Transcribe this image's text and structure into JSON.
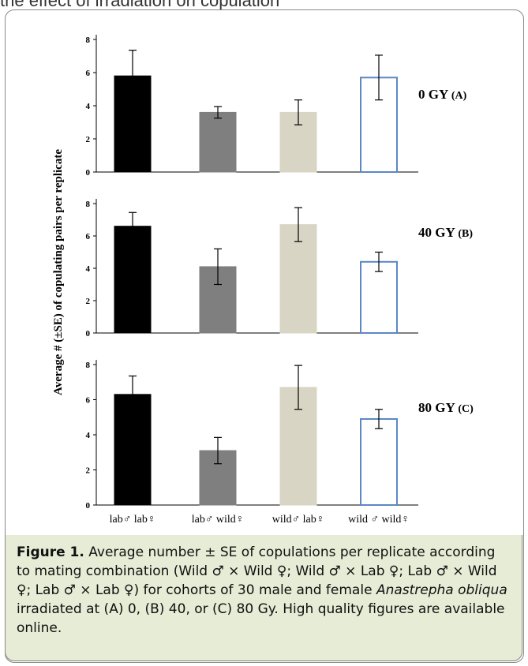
{
  "top_text": "the effect of irradiation on copulation",
  "chart_data": [
    {
      "type": "bar",
      "panel_label": "0 GY",
      "panel_letter": "(A)",
      "categories": [
        "lab♂ lab♀",
        "lab♂ wild♀",
        "wild♂ lab♀",
        "wild ♂ wild♀"
      ],
      "values": [
        5.8,
        3.6,
        3.6,
        5.7
      ],
      "errors": [
        1.55,
        0.35,
        0.75,
        1.35
      ],
      "ylim": [
        0,
        8
      ],
      "yticks": [
        0,
        2,
        4,
        6,
        8
      ]
    },
    {
      "type": "bar",
      "panel_label": "40 GY",
      "panel_letter": "(B)",
      "categories": [
        "lab♂ lab♀",
        "lab♂ wild♀",
        "wild♂ lab♀",
        "wild ♂ wild♀"
      ],
      "values": [
        6.6,
        4.1,
        6.7,
        4.4
      ],
      "errors": [
        0.85,
        1.1,
        1.05,
        0.6
      ],
      "ylim": [
        0,
        8
      ],
      "yticks": [
        0,
        2,
        4,
        6,
        8
      ]
    },
    {
      "type": "bar",
      "panel_label": "80 GY",
      "panel_letter": "(C)",
      "categories": [
        "lab♂ lab♀",
        "lab♂ wild♀",
        "wild♂ lab♀",
        "wild ♂ wild♀"
      ],
      "values": [
        6.3,
        3.1,
        6.7,
        4.9
      ],
      "errors": [
        1.05,
        0.75,
        1.25,
        0.55
      ],
      "ylim": [
        0,
        8
      ],
      "yticks": [
        0,
        2,
        4,
        6,
        8
      ]
    }
  ],
  "ylabel": "Average # (±SE) of copulating pairs per replicate",
  "bar_colors": [
    "#000000",
    "#7f7f7f",
    "#d8d5c5",
    "#ffffff"
  ],
  "bar_stroke_last": "#5b87c5",
  "caption": {
    "label": "Figure 1.",
    "text_before_species": " Average number ± SE of copulations per replicate according to mating combination (Wild ♂ × Wild ♀; Wild ♂ × Lab ♀; Lab ♂ × Wild ♀; Lab ♂ × Lab ♀) for cohorts of 30 male and female ",
    "species": "Anastrepha obliqua",
    "text_after_species": " irradiated at (A) 0, (B) 40, or (C) 80 Gy.  High quality figures are available online."
  }
}
